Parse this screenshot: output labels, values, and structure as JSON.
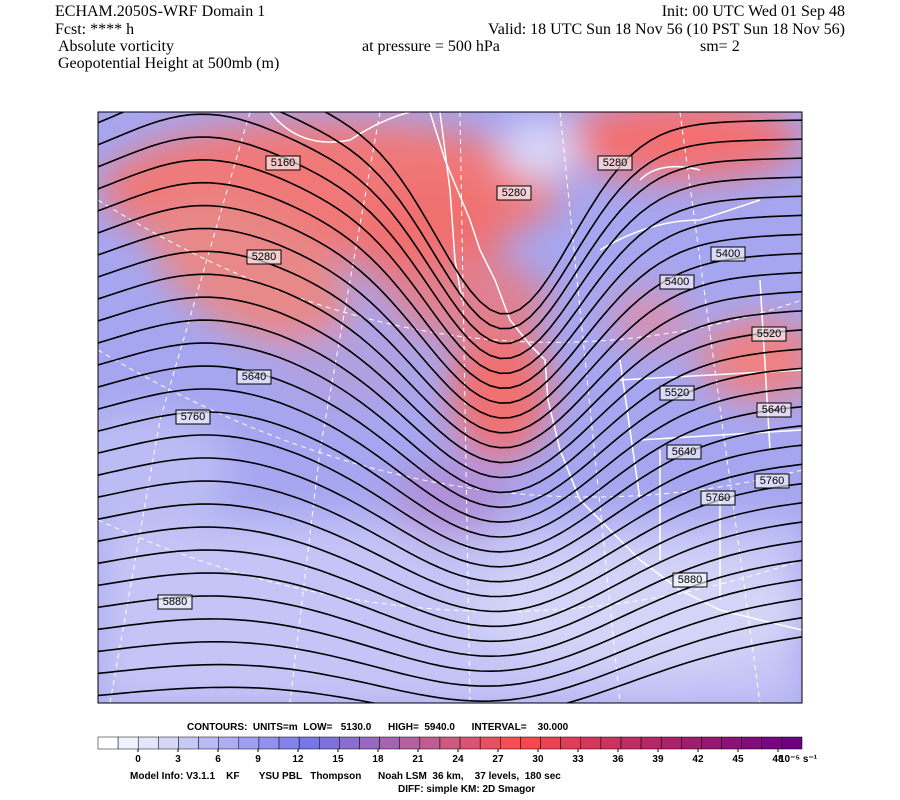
{
  "header": {
    "model": "ECHAM.2050S-WRF Domain 1",
    "init": "Init: 00 UTC Wed 01 Sep 48",
    "forecast": "Fcst: **** h",
    "valid": "Valid: 18 UTC Sun 18 Nov 56 (10 PST Sun 18 Nov 56)",
    "field": "Absolute vorticity",
    "pressure": "at pressure =  500 hPa",
    "smoothing": "sm= 2",
    "contour_field": "Geopotential Height at 500mb (m)"
  },
  "map": {
    "contour_labels": [
      "5160",
      "5280",
      "5280",
      "5280",
      "5400",
      "5400",
      "5520",
      "5640",
      "5520",
      "5760",
      "5640",
      "5640",
      "5760",
      "5760",
      "5880",
      "5880"
    ]
  },
  "contour_info": "CONTOURS:  UNITS=m  LOW=   5130.0      HIGH=  5940.0      INTERVAL=    30.000",
  "colorbar": {
    "ticks": [
      0,
      3,
      6,
      9,
      12,
      15,
      18,
      21,
      24,
      27,
      30,
      33,
      36,
      39,
      42,
      45,
      48
    ],
    "units": "10⁻⁵ s⁻¹"
  },
  "footer": {
    "model_info": "Model Info: V3.1.1    KF       YSU PBL   Thompson      Noah LSM  36 km,    37 levels,  180 sec",
    "diff": "DIFF: simple KM: 2D Smagor"
  }
}
